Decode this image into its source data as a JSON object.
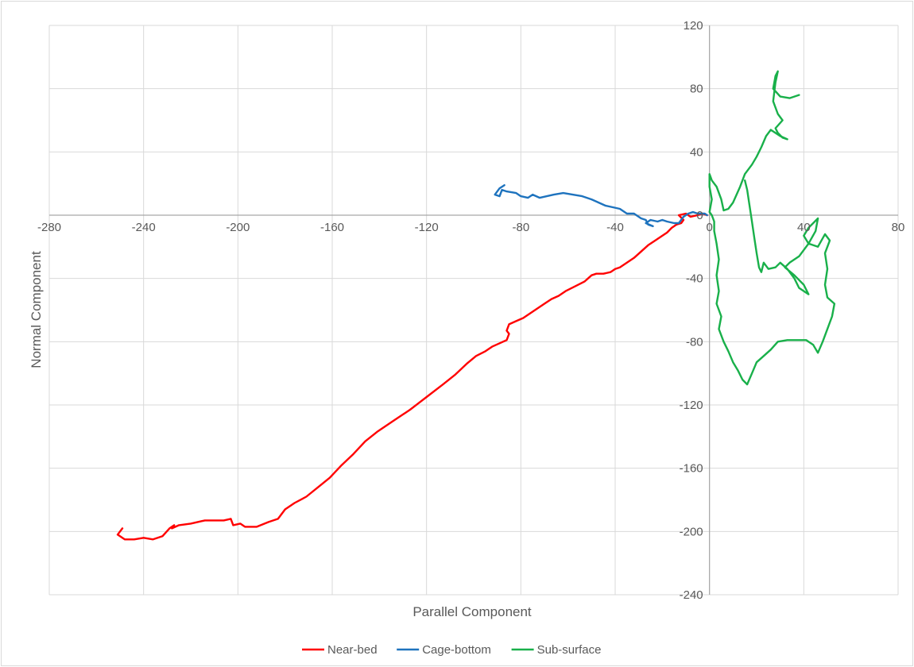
{
  "chart_data": {
    "type": "scatter",
    "title": "",
    "xlabel": "Parallel Component",
    "ylabel": "Normal Component",
    "xlim": [
      -280,
      80
    ],
    "ylim": [
      -240,
      120
    ],
    "x_ticks": [
      -280,
      -240,
      -200,
      -160,
      -120,
      -80,
      -40,
      0,
      40,
      80
    ],
    "y_ticks": [
      -240,
      -200,
      -160,
      -120,
      -80,
      -40,
      0,
      40,
      80,
      120
    ],
    "grid": true,
    "legend_position": "bottom",
    "series": [
      {
        "name": "Near-bed",
        "color": "#ff0000",
        "points": [
          [
            -249,
            -198
          ],
          [
            -251,
            -202
          ],
          [
            -248,
            -205
          ],
          [
            -244,
            -205
          ],
          [
            -240,
            -204
          ],
          [
            -236,
            -205
          ],
          [
            -232,
            -203
          ],
          [
            -229,
            -198
          ],
          [
            -227,
            -196
          ],
          [
            -228,
            -198
          ],
          [
            -225,
            -196
          ],
          [
            -220,
            -195
          ],
          [
            -214,
            -193
          ],
          [
            -210,
            -193
          ],
          [
            -206,
            -193
          ],
          [
            -203,
            -192
          ],
          [
            -202,
            -196
          ],
          [
            -199,
            -195
          ],
          [
            -197,
            -197
          ],
          [
            -192,
            -197
          ],
          [
            -187,
            -194
          ],
          [
            -183,
            -192
          ],
          [
            -180,
            -186
          ],
          [
            -176,
            -182
          ],
          [
            -171,
            -178
          ],
          [
            -166,
            -172
          ],
          [
            -161,
            -166
          ],
          [
            -156,
            -158
          ],
          [
            -151,
            -151
          ],
          [
            -146,
            -143
          ],
          [
            -141,
            -137
          ],
          [
            -134,
            -130
          ],
          [
            -127,
            -123
          ],
          [
            -120,
            -115
          ],
          [
            -113,
            -107
          ],
          [
            -108,
            -101
          ],
          [
            -103,
            -94
          ],
          [
            -99,
            -89
          ],
          [
            -95,
            -86
          ],
          [
            -92,
            -83
          ],
          [
            -89,
            -81
          ],
          [
            -86,
            -79
          ],
          [
            -85,
            -75
          ],
          [
            -86,
            -73
          ],
          [
            -85,
            -69
          ],
          [
            -82,
            -67
          ],
          [
            -79,
            -65
          ],
          [
            -76,
            -62
          ],
          [
            -73,
            -59
          ],
          [
            -70,
            -56
          ],
          [
            -67,
            -53
          ],
          [
            -64,
            -51
          ],
          [
            -61,
            -48
          ],
          [
            -57,
            -45
          ],
          [
            -53,
            -42
          ],
          [
            -50,
            -38
          ],
          [
            -48,
            -37
          ],
          [
            -45,
            -37
          ],
          [
            -42,
            -36
          ],
          [
            -40,
            -34
          ],
          [
            -38,
            -33
          ],
          [
            -35,
            -30
          ],
          [
            -32,
            -27
          ],
          [
            -29,
            -23
          ],
          [
            -26,
            -19
          ],
          [
            -23,
            -16
          ],
          [
            -20,
            -13
          ],
          [
            -18,
            -11
          ],
          [
            -16,
            -8
          ],
          [
            -14,
            -6
          ],
          [
            -12,
            -5
          ],
          [
            -11,
            -3
          ],
          [
            -13,
            0
          ],
          [
            -10,
            1
          ],
          [
            -8,
            -1
          ],
          [
            -5,
            0
          ],
          [
            -3,
            1
          ],
          [
            -1,
            0
          ]
        ]
      },
      {
        "name": "Cage-bottom",
        "color": "#1e73be",
        "points": [
          [
            -87,
            19
          ],
          [
            -89,
            17
          ],
          [
            -91,
            13
          ],
          [
            -89,
            12
          ],
          [
            -88,
            16
          ],
          [
            -86,
            15
          ],
          [
            -82,
            14
          ],
          [
            -80,
            12
          ],
          [
            -77,
            11
          ],
          [
            -75,
            13
          ],
          [
            -72,
            11
          ],
          [
            -69,
            12
          ],
          [
            -66,
            13
          ],
          [
            -62,
            14
          ],
          [
            -58,
            13
          ],
          [
            -54,
            12
          ],
          [
            -50,
            10
          ],
          [
            -47,
            8
          ],
          [
            -44,
            6
          ],
          [
            -41,
            5
          ],
          [
            -38,
            4
          ],
          [
            -35,
            1
          ],
          [
            -32,
            1
          ],
          [
            -29,
            -2
          ],
          [
            -27,
            -3
          ],
          [
            -26,
            -6
          ],
          [
            -24,
            -7
          ],
          [
            -27,
            -5
          ],
          [
            -25,
            -3
          ],
          [
            -22,
            -4
          ],
          [
            -20,
            -3
          ],
          [
            -18,
            -4
          ],
          [
            -15,
            -5
          ],
          [
            -13,
            -5
          ],
          [
            -11,
            -1
          ],
          [
            -9,
            1
          ],
          [
            -7,
            2
          ],
          [
            -5,
            1
          ],
          [
            -2,
            1
          ],
          [
            -1,
            0
          ]
        ]
      },
      {
        "name": "Sub-surface",
        "color": "#19b04a",
        "points": [
          [
            38,
            76
          ],
          [
            34,
            74
          ],
          [
            30,
            75
          ],
          [
            27,
            80
          ],
          [
            28,
            88
          ],
          [
            29,
            91
          ],
          [
            28,
            84
          ],
          [
            27,
            72
          ],
          [
            29,
            64
          ],
          [
            31,
            60
          ],
          [
            28,
            55
          ],
          [
            29,
            52
          ],
          [
            31,
            49
          ],
          [
            33,
            48
          ],
          [
            30,
            50
          ],
          [
            26,
            54
          ],
          [
            24,
            50
          ],
          [
            22,
            43
          ],
          [
            20,
            37
          ],
          [
            18,
            32
          ],
          [
            15,
            26
          ],
          [
            13,
            18
          ],
          [
            10,
            8
          ],
          [
            8,
            4
          ],
          [
            6,
            3
          ],
          [
            5,
            10
          ],
          [
            3,
            18
          ],
          [
            1,
            22
          ],
          [
            0,
            26
          ],
          [
            0,
            18
          ],
          [
            1,
            10
          ],
          [
            0,
            2
          ],
          [
            1,
            0
          ],
          [
            2,
            -4
          ],
          [
            2,
            -10
          ],
          [
            3,
            -18
          ],
          [
            4,
            -28
          ],
          [
            3,
            -38
          ],
          [
            4,
            -48
          ],
          [
            3,
            -56
          ],
          [
            5,
            -64
          ],
          [
            4,
            -72
          ],
          [
            6,
            -80
          ],
          [
            8,
            -86
          ],
          [
            10,
            -93
          ],
          [
            12,
            -98
          ],
          [
            14,
            -104
          ],
          [
            16,
            -107
          ],
          [
            18,
            -100
          ],
          [
            20,
            -93
          ],
          [
            23,
            -89
          ],
          [
            26,
            -85
          ],
          [
            29,
            -80
          ],
          [
            33,
            -79
          ],
          [
            37,
            -79
          ],
          [
            41,
            -79
          ],
          [
            44,
            -82
          ],
          [
            46,
            -87
          ],
          [
            48,
            -80
          ],
          [
            50,
            -72
          ],
          [
            52,
            -64
          ],
          [
            53,
            -56
          ],
          [
            50,
            -52
          ],
          [
            49,
            -44
          ],
          [
            50,
            -34
          ],
          [
            49,
            -24
          ],
          [
            51,
            -16
          ],
          [
            49,
            -12
          ],
          [
            46,
            -20
          ],
          [
            42,
            -18
          ],
          [
            40,
            -13
          ],
          [
            42,
            -8
          ],
          [
            44,
            -5
          ],
          [
            46,
            -2
          ],
          [
            45,
            -10
          ],
          [
            42,
            -18
          ],
          [
            38,
            -26
          ],
          [
            34,
            -30
          ],
          [
            32,
            -33
          ],
          [
            36,
            -38
          ],
          [
            40,
            -44
          ],
          [
            42,
            -50
          ],
          [
            38,
            -46
          ],
          [
            36,
            -40
          ],
          [
            33,
            -34
          ],
          [
            30,
            -30
          ],
          [
            28,
            -33
          ],
          [
            25,
            -34
          ],
          [
            23,
            -30
          ],
          [
            22,
            -36
          ],
          [
            21,
            -33
          ],
          [
            20,
            -24
          ],
          [
            19,
            -14
          ],
          [
            18,
            -4
          ],
          [
            17,
            6
          ],
          [
            16,
            16
          ],
          [
            15,
            22
          ]
        ]
      }
    ]
  }
}
